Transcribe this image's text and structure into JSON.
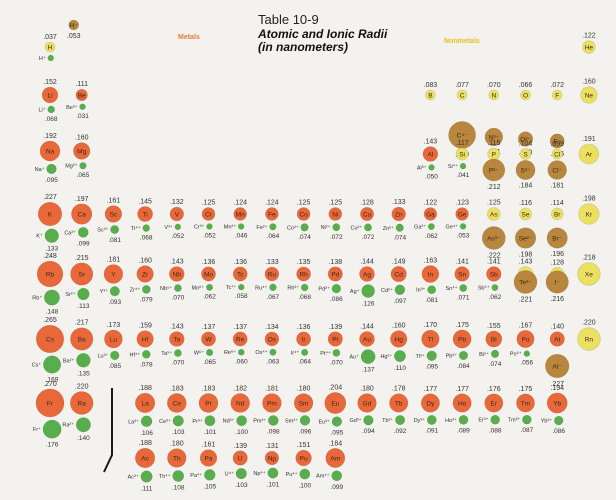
{
  "header": {
    "table_no": "Table 10-9",
    "title_line1": "Atomic and Ionic Radii",
    "title_line2": "(in nanometers)",
    "metals_label": "Metals",
    "nonmetals_label": "Nonmetals"
  },
  "colors": {
    "background": "#f3f2ee",
    "metal_atom": "#e8683a",
    "nonmetal_atom": "#ece060",
    "anion": "#b8863c",
    "cation": "#58ad4c",
    "label": "#333333",
    "divider": "#1a1a1a"
  },
  "chart_data": {
    "type": "table",
    "title": "Atomic and Ionic Radii (in nanometers)",
    "elements": [
      {
        "sym": "H",
        "c": 1,
        "r": 1,
        "atom": 0.037,
        "kind": "n",
        "ion": "H⁺",
        "ion_r": null
      },
      {
        "sym": "H⁻",
        "c": 2,
        "r": 1,
        "atom": 0.053,
        "kind": "a"
      },
      {
        "sym": "He",
        "c": 18,
        "r": 1,
        "atom": 0.122,
        "kind": "n"
      },
      {
        "sym": "Li",
        "c": 1,
        "r": 2,
        "atom": 0.152,
        "kind": "m",
        "ion": "Li⁺",
        "ion_r": 0.068
      },
      {
        "sym": "Be",
        "c": 2,
        "r": 2,
        "atom": 0.111,
        "kind": "m",
        "ion": "Be²⁺",
        "ion_r": 0.031
      },
      {
        "sym": "B",
        "c": 13,
        "r": 2,
        "atom": 0.083,
        "kind": "n"
      },
      {
        "sym": "C",
        "c": 14,
        "r": 2,
        "atom": 0.077,
        "kind": "n"
      },
      {
        "sym": "N",
        "c": 15,
        "r": 2,
        "atom": 0.07,
        "kind": "n"
      },
      {
        "sym": "O",
        "c": 16,
        "r": 2,
        "atom": 0.066,
        "kind": "n"
      },
      {
        "sym": "F",
        "c": 17,
        "r": 2,
        "atom": 0.072,
        "kind": "n"
      },
      {
        "sym": "Ne",
        "c": 18,
        "r": 2,
        "atom": 0.16,
        "kind": "n"
      },
      {
        "sym": "C⁴⁻",
        "c": 14,
        "r": 3,
        "atom": 0.26,
        "kind": "a"
      },
      {
        "sym": "N³⁻",
        "c": 15,
        "r": 3,
        "atom": 0.171,
        "kind": "a"
      },
      {
        "sym": "O²⁻",
        "c": 16,
        "r": 3,
        "atom": 0.14,
        "kind": "a"
      },
      {
        "sym": "F⁻",
        "c": 17,
        "r": 3,
        "atom": 0.136,
        "kind": "a"
      },
      {
        "sym": "Na",
        "c": 1,
        "r": 3,
        "atom": 0.192,
        "kind": "m",
        "ion": "Na⁺",
        "ion_r": 0.095
      },
      {
        "sym": "Mg",
        "c": 2,
        "r": 3,
        "atom": 0.16,
        "kind": "m",
        "ion": "Mg²⁺",
        "ion_r": 0.065
      },
      {
        "sym": "Al",
        "c": 13,
        "r": 4,
        "atom": 0.143,
        "kind": "m",
        "ion": "Al³⁺",
        "ion_r": 0.05
      },
      {
        "sym": "Si",
        "c": 14,
        "r": 4,
        "atom": 0.117,
        "kind": "n",
        "ion": "Si⁴⁺",
        "ion_r": 0.041
      },
      {
        "sym": "P",
        "c": 15,
        "r": 4,
        "atom": 0.115,
        "kind": "n"
      },
      {
        "sym": "S",
        "c": 16,
        "r": 4,
        "atom": 0.104,
        "kind": "n"
      },
      {
        "sym": "Cl",
        "c": 17,
        "r": 4,
        "atom": 0.099,
        "kind": "n"
      },
      {
        "sym": "Ar",
        "c": 18,
        "r": 4,
        "atom": 0.191,
        "kind": "n"
      },
      {
        "sym": "P³⁻",
        "c": 15,
        "r": 4.5,
        "atom": 0.212,
        "kind": "a"
      },
      {
        "sym": "S²⁻",
        "c": 16,
        "r": 4.5,
        "atom": 0.184,
        "kind": "a"
      },
      {
        "sym": "Cl⁻",
        "c": 17,
        "r": 4.5,
        "atom": 0.181,
        "kind": "a"
      },
      {
        "sym": "K",
        "c": 1,
        "r": 5,
        "atom": 0.227,
        "kind": "m",
        "ion": "K⁺",
        "ion_r": 0.133
      },
      {
        "sym": "Ca",
        "c": 2,
        "r": 5,
        "atom": 0.197,
        "kind": "m",
        "ion": "Ca²⁺",
        "ion_r": 0.099
      },
      {
        "sym": "Sc",
        "c": 3,
        "r": 5,
        "atom": 0.161,
        "kind": "m",
        "ion": "Sc³⁺",
        "ion_r": 0.081
      },
      {
        "sym": "Ti",
        "c": 4,
        "r": 5,
        "atom": 0.145,
        "kind": "m",
        "ion": "Ti⁴⁺",
        "ion_r": 0.068
      },
      {
        "sym": "V",
        "c": 5,
        "r": 5,
        "atom": 0.132,
        "kind": "m",
        "ion": "V³⁺",
        "ion_r": 0.052
      },
      {
        "sym": "Cr",
        "c": 6,
        "r": 5,
        "atom": 0.125,
        "kind": "m",
        "ion": "Cr³⁺",
        "ion_r": 0.052
      },
      {
        "sym": "Mn",
        "c": 7,
        "r": 5,
        "atom": 0.124,
        "kind": "m",
        "ion": "Mn²⁺",
        "ion_r": 0.046
      },
      {
        "sym": "Fe",
        "c": 8,
        "r": 5,
        "atom": 0.124,
        "kind": "m",
        "ion": "Fe²⁺",
        "ion_r": 0.064
      },
      {
        "sym": "Co",
        "c": 9,
        "r": 5,
        "atom": 0.125,
        "kind": "m",
        "ion": "Co²⁺",
        "ion_r": 0.074
      },
      {
        "sym": "Ni",
        "c": 10,
        "r": 5,
        "atom": 0.125,
        "kind": "m",
        "ion": "Ni²⁺",
        "ion_r": 0.072
      },
      {
        "sym": "Cu",
        "c": 11,
        "r": 5,
        "atom": 0.128,
        "kind": "m",
        "ion": "Cu²⁺",
        "ion_r": 0.072
      },
      {
        "sym": "Zn",
        "c": 12,
        "r": 5,
        "atom": 0.133,
        "kind": "m",
        "ion": "Zn²⁺",
        "ion_r": 0.074
      },
      {
        "sym": "Ga",
        "c": 13,
        "r": 5,
        "atom": 0.122,
        "kind": "m",
        "ion": "Ga³⁺",
        "ion_r": 0.062
      },
      {
        "sym": "Ge",
        "c": 14,
        "r": 5,
        "atom": 0.123,
        "kind": "m",
        "ion": "Ge⁴⁺",
        "ion_r": 0.053
      },
      {
        "sym": "As",
        "c": 15,
        "r": 5,
        "atom": 0.125,
        "kind": "n"
      },
      {
        "sym": "Se",
        "c": 16,
        "r": 5,
        "atom": 0.116,
        "kind": "n"
      },
      {
        "sym": "Br",
        "c": 17,
        "r": 5,
        "atom": 0.114,
        "kind": "n"
      },
      {
        "sym": "Kr",
        "c": 18,
        "r": 5,
        "atom": 0.198,
        "kind": "n"
      },
      {
        "sym": "As³⁻",
        "c": 15,
        "r": 5.5,
        "atom": 0.222,
        "kind": "a"
      },
      {
        "sym": "Se²⁻",
        "c": 16,
        "r": 5.5,
        "atom": 0.198,
        "kind": "a"
      },
      {
        "sym": "Br⁻",
        "c": 17,
        "r": 5.5,
        "atom": 0.196,
        "kind": "a"
      },
      {
        "sym": "Rb",
        "c": 1,
        "r": 6,
        "atom": 0.248,
        "kind": "m",
        "ion": "Rb⁺",
        "ion_r": 0.148
      },
      {
        "sym": "Sr",
        "c": 2,
        "r": 6,
        "atom": 0.215,
        "kind": "m",
        "ion": "Sr²⁺",
        "ion_r": 0.113
      },
      {
        "sym": "Y",
        "c": 3,
        "r": 6,
        "atom": 0.181,
        "kind": "m",
        "ion": "Y³⁺",
        "ion_r": 0.093
      },
      {
        "sym": "Zr",
        "c": 4,
        "r": 6,
        "atom": 0.16,
        "kind": "m",
        "ion": "Zr⁴⁺",
        "ion_r": 0.079
      },
      {
        "sym": "Nb",
        "c": 5,
        "r": 6,
        "atom": 0.143,
        "kind": "m",
        "ion": "Nb⁵⁺",
        "ion_r": 0.07
      },
      {
        "sym": "Mo",
        "c": 6,
        "r": 6,
        "atom": 0.136,
        "kind": "m",
        "ion": "Mo⁶⁺",
        "ion_r": 0.062
      },
      {
        "sym": "Tc",
        "c": 7,
        "r": 6,
        "atom": 0.136,
        "kind": "m",
        "ion": "Tc⁷⁺",
        "ion_r": 0.058
      },
      {
        "sym": "Ru",
        "c": 8,
        "r": 6,
        "atom": 0.133,
        "kind": "m",
        "ion": "Ru⁴⁺",
        "ion_r": 0.067
      },
      {
        "sym": "Rh",
        "c": 9,
        "r": 6,
        "atom": 0.135,
        "kind": "m",
        "ion": "Rh³⁺",
        "ion_r": 0.068
      },
      {
        "sym": "Pd",
        "c": 10,
        "r": 6,
        "atom": 0.138,
        "kind": "m",
        "ion": "Pd²⁺",
        "ion_r": 0.086
      },
      {
        "sym": "Ag",
        "c": 11,
        "r": 6,
        "atom": 0.144,
        "kind": "m",
        "ion": "Ag⁺",
        "ion_r": 0.126
      },
      {
        "sym": "Cd",
        "c": 12,
        "r": 6,
        "atom": 0.149,
        "kind": "m",
        "ion": "Cd²⁺",
        "ion_r": 0.097
      },
      {
        "sym": "In",
        "c": 13,
        "r": 6,
        "atom": 0.163,
        "kind": "m",
        "ion": "In³⁺",
        "ion_r": 0.081
      },
      {
        "sym": "Sn",
        "c": 14,
        "r": 6,
        "atom": 0.141,
        "kind": "m",
        "ion": "Sn⁴⁺",
        "ion_r": 0.071
      },
      {
        "sym": "Sb",
        "c": 15,
        "r": 6,
        "atom": 0.141,
        "kind": "m",
        "ion": "Sb⁵⁺",
        "ion_r": 0.062
      },
      {
        "sym": "Te",
        "c": 16,
        "r": 6,
        "atom": 0.143,
        "kind": "n"
      },
      {
        "sym": "I",
        "c": 17,
        "r": 6,
        "atom": 0.128,
        "kind": "n"
      },
      {
        "sym": "Xe",
        "c": 18,
        "r": 6,
        "atom": 0.218,
        "kind": "n"
      },
      {
        "sym": "Te²⁻",
        "c": 16,
        "r": 6.5,
        "atom": 0.221,
        "kind": "a"
      },
      {
        "sym": "I⁻",
        "c": 17,
        "r": 6.5,
        "atom": 0.216,
        "kind": "a"
      },
      {
        "sym": "Cs",
        "c": 1,
        "r": 7,
        "atom": 0.265,
        "kind": "m",
        "ion": "Cs⁺",
        "ion_r": 0.169
      },
      {
        "sym": "Ba",
        "c": 2,
        "r": 7,
        "atom": 0.217,
        "kind": "m",
        "ion": "Ba²⁺",
        "ion_r": 0.135
      },
      {
        "sym": "Lu",
        "c": 3,
        "r": 7,
        "atom": 0.173,
        "kind": "m",
        "ion": "Lu³⁺",
        "ion_r": 0.085
      },
      {
        "sym": "Hf",
        "c": 4,
        "r": 7,
        "atom": 0.159,
        "kind": "m",
        "ion": "Hf⁴⁺",
        "ion_r": 0.078
      },
      {
        "sym": "Ta",
        "c": 5,
        "r": 7,
        "atom": 0.143,
        "kind": "m",
        "ion": "Ta⁵⁺",
        "ion_r": 0.07
      },
      {
        "sym": "W",
        "c": 6,
        "r": 7,
        "atom": 0.137,
        "kind": "m",
        "ion": "W⁶⁺",
        "ion_r": 0.065
      },
      {
        "sym": "Re",
        "c": 7,
        "r": 7,
        "atom": 0.137,
        "kind": "m",
        "ion": "Re⁶⁺",
        "ion_r": 0.06
      },
      {
        "sym": "Os",
        "c": 8,
        "r": 7,
        "atom": 0.134,
        "kind": "m",
        "ion": "Os⁴⁺",
        "ion_r": 0.063
      },
      {
        "sym": "Ir",
        "c": 9,
        "r": 7,
        "atom": 0.136,
        "kind": "m",
        "ion": "Ir⁴⁺",
        "ion_r": 0.064
      },
      {
        "sym": "Pt",
        "c": 10,
        "r": 7,
        "atom": 0.139,
        "kind": "m",
        "ion": "Pt⁴⁺",
        "ion_r": 0.07
      },
      {
        "sym": "Au",
        "c": 11,
        "r": 7,
        "atom": 0.144,
        "kind": "m",
        "ion": "Au⁺",
        "ion_r": 0.137
      },
      {
        "sym": "Hg",
        "c": 12,
        "r": 7,
        "atom": 0.16,
        "kind": "m",
        "ion": "Hg²⁺",
        "ion_r": 0.11
      },
      {
        "sym": "Tl",
        "c": 13,
        "r": 7,
        "atom": 0.17,
        "kind": "m",
        "ion": "Tl³⁺",
        "ion_r": 0.095
      },
      {
        "sym": "Pb",
        "c": 14,
        "r": 7,
        "atom": 0.175,
        "kind": "m",
        "ion": "Pb²⁺",
        "ion_r": 0.084
      },
      {
        "sym": "Bi",
        "c": 15,
        "r": 7,
        "atom": 0.155,
        "kind": "m",
        "ion": "Bi⁵⁺",
        "ion_r": 0.074
      },
      {
        "sym": "Po",
        "c": 16,
        "r": 7,
        "atom": 0.167,
        "kind": "m",
        "ion": "Po⁶⁺",
        "ion_r": 0.056
      },
      {
        "sym": "At",
        "c": 17,
        "r": 7,
        "atom": 0.14,
        "kind": "m"
      },
      {
        "sym": "Rn",
        "c": 18,
        "r": 7,
        "atom": 0.22,
        "kind": "n"
      },
      {
        "sym": "At⁻",
        "c": 17,
        "r": 7.5,
        "atom": 0.227,
        "kind": "a"
      },
      {
        "sym": "Fr",
        "c": 1,
        "r": 8,
        "atom": 0.27,
        "kind": "m",
        "ion": "Fr⁺",
        "ion_r": 0.176
      },
      {
        "sym": "Ra",
        "c": 2,
        "r": 8,
        "atom": 0.22,
        "kind": "m",
        "ion": "Ra²⁺",
        "ion_r": 0.14
      },
      {
        "sym": "La",
        "c": 4,
        "r": 8,
        "atom": 0.188,
        "kind": "m",
        "ion": "La³⁺",
        "ion_r": 0.106
      },
      {
        "sym": "Ce",
        "c": 5,
        "r": 8,
        "atom": 0.183,
        "kind": "m",
        "ion": "Ce³⁺",
        "ion_r": 0.103
      },
      {
        "sym": "Pr",
        "c": 6,
        "r": 8,
        "atom": 0.183,
        "kind": "m",
        "ion": "Pr³⁺",
        "ion_r": 0.101
      },
      {
        "sym": "Nd",
        "c": 7,
        "r": 8,
        "atom": 0.182,
        "kind": "m",
        "ion": "Nd³⁺",
        "ion_r": 0.1
      },
      {
        "sym": "Pm",
        "c": 8,
        "r": 8,
        "atom": 0.181,
        "kind": "m",
        "ion": "Pm³⁺",
        "ion_r": 0.098
      },
      {
        "sym": "Sm",
        "c": 9,
        "r": 8,
        "atom": 0.18,
        "kind": "m",
        "ion": "Sm³⁺",
        "ion_r": 0.096
      },
      {
        "sym": "Eu",
        "c": 10,
        "r": 8,
        "atom": 0.204,
        "kind": "m",
        "ion": "Eu³⁺",
        "ion_r": 0.095
      },
      {
        "sym": "Gd",
        "c": 11,
        "r": 8,
        "atom": 0.18,
        "kind": "m",
        "ion": "Gd³⁺",
        "ion_r": 0.094
      },
      {
        "sym": "Tb",
        "c": 12,
        "r": 8,
        "atom": 0.178,
        "kind": "m",
        "ion": "Tb³⁺",
        "ion_r": 0.092
      },
      {
        "sym": "Dy",
        "c": 13,
        "r": 8,
        "atom": 0.177,
        "kind": "m",
        "ion": "Dy³⁺",
        "ion_r": 0.091
      },
      {
        "sym": "Ho",
        "c": 14,
        "r": 8,
        "atom": 0.177,
        "kind": "m",
        "ion": "Ho³⁺",
        "ion_r": 0.089
      },
      {
        "sym": "Er",
        "c": 15,
        "r": 8,
        "atom": 0.176,
        "kind": "m",
        "ion": "Er³⁺",
        "ion_r": 0.088
      },
      {
        "sym": "Tm",
        "c": 16,
        "r": 8,
        "atom": 0.175,
        "kind": "m",
        "ion": "Tm³⁺",
        "ion_r": 0.087
      },
      {
        "sym": "Yb",
        "c": 17,
        "r": 8,
        "atom": 0.194,
        "kind": "m",
        "ion": "Yb³⁺",
        "ion_r": 0.086
      },
      {
        "sym": "Ac",
        "c": 4,
        "r": 9,
        "atom": 0.188,
        "kind": "m",
        "ion": "Ac³⁺",
        "ion_r": 0.111
      },
      {
        "sym": "Th",
        "c": 5,
        "r": 9,
        "atom": 0.18,
        "kind": "m",
        "ion": "Th⁴⁺",
        "ion_r": 0.108
      },
      {
        "sym": "Pa",
        "c": 6,
        "r": 9,
        "atom": 0.161,
        "kind": "m",
        "ion": "Pa⁴⁺",
        "ion_r": 0.105
      },
      {
        "sym": "U",
        "c": 7,
        "r": 9,
        "atom": 0.139,
        "kind": "m",
        "ion": "U⁴⁺",
        "ion_r": 0.103
      },
      {
        "sym": "Np",
        "c": 8,
        "r": 9,
        "atom": 0.131,
        "kind": "m",
        "ion": "Np⁴⁺",
        "ion_r": 0.101
      },
      {
        "sym": "Pu",
        "c": 9,
        "r": 9,
        "atom": 0.151,
        "kind": "m",
        "ion": "Pu⁴⁺",
        "ion_r": 0.1
      },
      {
        "sym": "Am",
        "c": 10,
        "r": 9,
        "atom": 0.184,
        "kind": "m",
        "ion": "Am⁴⁺",
        "ion_r": 0.099
      }
    ]
  }
}
